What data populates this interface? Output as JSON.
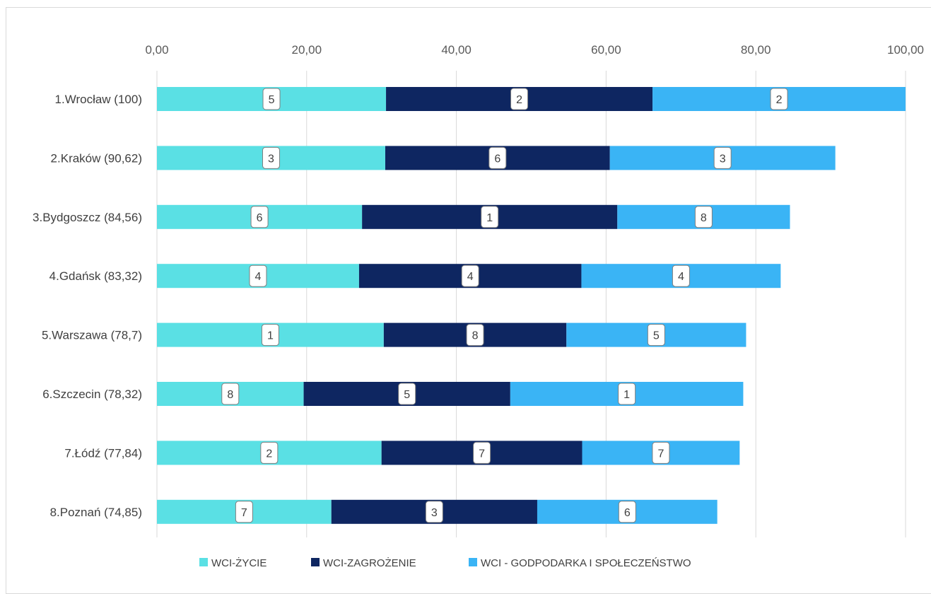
{
  "chart_data": {
    "type": "bar",
    "orientation": "horizontal",
    "stacked": true,
    "title": "",
    "xlabel": "",
    "ylabel": "",
    "xlim": [
      0,
      100
    ],
    "x_ticks": [
      "0,00",
      "20,00",
      "40,00",
      "60,00",
      "80,00",
      "100,00"
    ],
    "x_tick_values": [
      0,
      20,
      40,
      60,
      80,
      100
    ],
    "x_axis_position": "top",
    "grid": true,
    "legend_position": "bottom",
    "categories": [
      "1.Wrocław (100)",
      "2.Kraków (90,62)",
      "3.Bydgoszcz (84,56)",
      "4.Gdańsk (83,32)",
      "5.Warszawa (78,7)",
      "6.Szczecin (78,32)",
      "7.Łódź (77,84)",
      "8.Poznań (74,85)"
    ],
    "series": [
      {
        "name": "WCI-ŻYCIE",
        "color": "#5ae0e4",
        "values": [
          30.6,
          30.5,
          27.4,
          27.0,
          30.3,
          19.6,
          30.0,
          23.3
        ],
        "ranks": [
          "5",
          "3",
          "6",
          "4",
          "1",
          "8",
          "2",
          "7"
        ]
      },
      {
        "name": "WCI-ZAGROŻENIE",
        "color": "#0e2661",
        "values": [
          35.6,
          30.0,
          34.1,
          29.7,
          24.4,
          27.6,
          26.8,
          27.5
        ],
        "ranks": [
          "2",
          "6",
          "1",
          "4",
          "8",
          "5",
          "7",
          "3"
        ]
      },
      {
        "name": "WCI - GODPODARKA I SPOŁECZEŃSTWO",
        "color": "#3ab4f5",
        "values": [
          33.8,
          30.12,
          23.06,
          26.62,
          24.0,
          31.12,
          21.04,
          24.05
        ],
        "ranks": [
          "2",
          "3",
          "8",
          "4",
          "5",
          "1",
          "7",
          "6"
        ]
      }
    ]
  }
}
